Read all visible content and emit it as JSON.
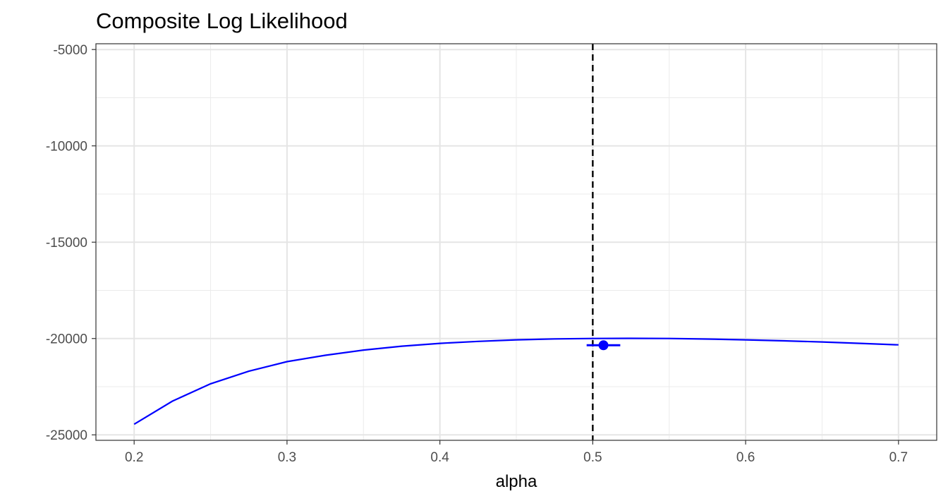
{
  "chart_data": {
    "type": "line",
    "title": "Composite Log Likelihood",
    "xlabel": "alpha",
    "ylabel": "",
    "xlim": [
      0.2,
      0.7
    ],
    "ylim": [
      -25000,
      -5000
    ],
    "x_ticks": [
      "0.2",
      "0.3",
      "0.4",
      "0.5",
      "0.6",
      "0.7"
    ],
    "y_ticks": [
      "-5000",
      "-10000",
      "-15000",
      "-20000",
      "-25000"
    ],
    "grid": true,
    "series": [
      {
        "color": "#0000ff",
        "x": [
          0.2,
          0.225,
          0.25,
          0.275,
          0.3,
          0.325,
          0.35,
          0.375,
          0.4,
          0.425,
          0.45,
          0.475,
          0.5,
          0.525,
          0.55,
          0.575,
          0.6,
          0.625,
          0.65,
          0.675,
          0.7
        ],
        "y": [
          -24450,
          -23250,
          -22350,
          -21700,
          -21200,
          -20870,
          -20600,
          -20400,
          -20250,
          -20150,
          -20070,
          -20020,
          -20000,
          -19990,
          -20000,
          -20030,
          -20070,
          -20120,
          -20180,
          -20250,
          -20330
        ]
      }
    ],
    "reference_line": {
      "axis": "x",
      "value": 0.5,
      "style": "dashed",
      "color": "#000000"
    },
    "point_estimate": {
      "x": 0.507,
      "y": -20350,
      "xmin": 0.496,
      "xmax": 0.518,
      "color": "#0000ff"
    }
  }
}
